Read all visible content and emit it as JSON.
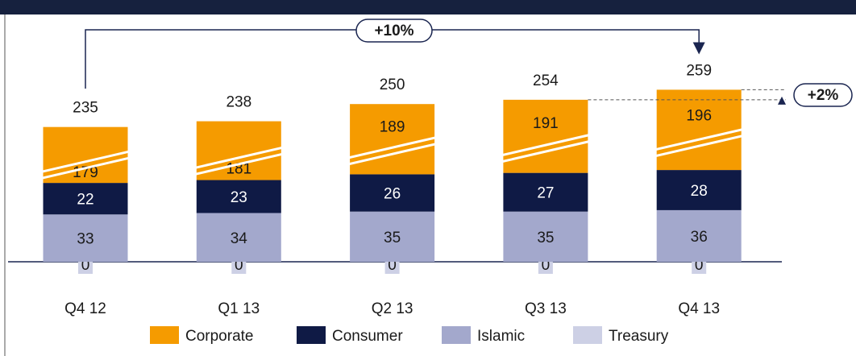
{
  "chart_data": {
    "type": "stacked_bar",
    "categories": [
      "Q4 12",
      "Q1 13",
      "Q2 13",
      "Q3 13",
      "Q4 13"
    ],
    "series": [
      {
        "name": "Treasury",
        "color": "#cdd0e5",
        "values": [
          0,
          0,
          0,
          0,
          0
        ]
      },
      {
        "name": "Islamic",
        "color": "#a3a8cc",
        "values": [
          33,
          34,
          35,
          35,
          36
        ]
      },
      {
        "name": "Consumer",
        "color": "#0f1a45",
        "values": [
          22,
          23,
          26,
          27,
          28
        ]
      },
      {
        "name": "Corporate",
        "color": "#f59b00",
        "values": [
          179,
          181,
          189,
          191,
          196
        ]
      }
    ],
    "totals": [
      235,
      238,
      250,
      254,
      259
    ],
    "annotations": [
      "+10%",
      "+2%"
    ],
    "legend_order": [
      3,
      2,
      1,
      0
    ]
  }
}
